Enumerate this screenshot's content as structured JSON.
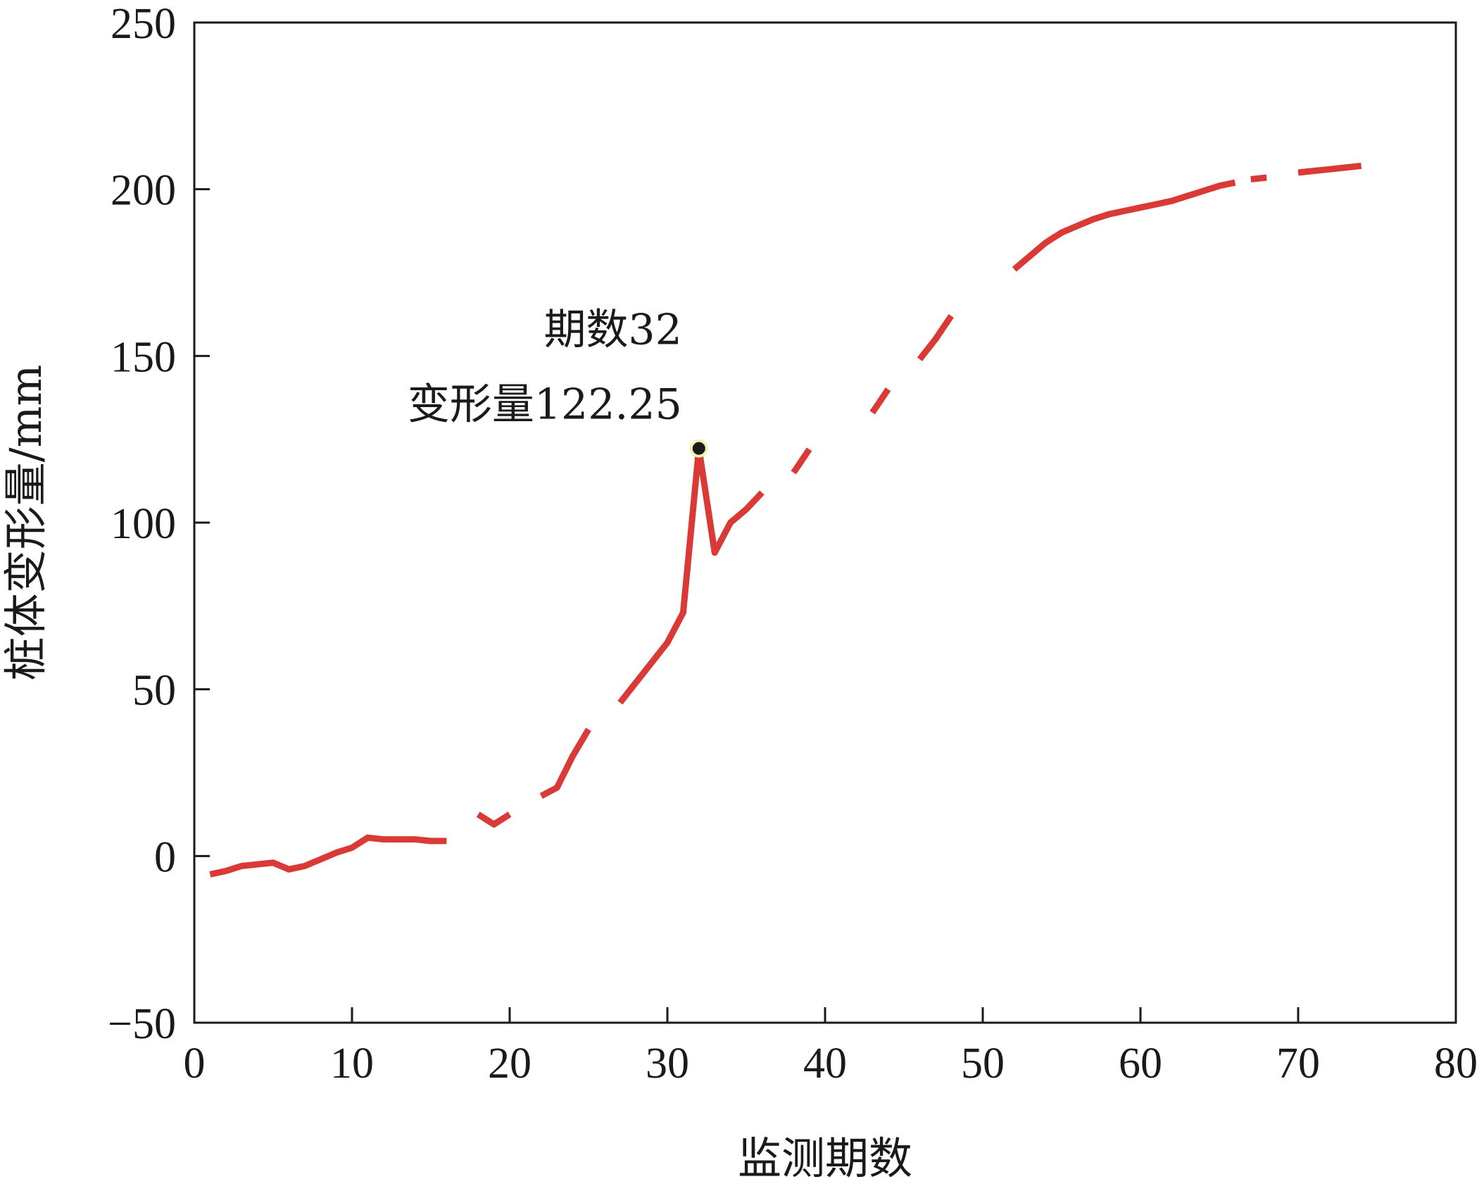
{
  "chart_data": {
    "type": "line",
    "xlabel": "监测期数",
    "ylabel": "桩体变形量/mm",
    "xlim": [
      0,
      80
    ],
    "ylim": [
      -50,
      250
    ],
    "xticks": [
      "0",
      "10",
      "20",
      "30",
      "40",
      "50",
      "60",
      "70",
      "80"
    ],
    "yticks": [
      "−50",
      "0",
      "50",
      "100",
      "150",
      "200",
      "250"
    ],
    "grid": false,
    "line_color": "#d93a36",
    "series": [
      {
        "segments": [
          [
            [
              1,
              -5.5
            ],
            [
              2,
              -4.5
            ],
            [
              3,
              -3
            ],
            [
              4,
              -2.5
            ],
            [
              5,
              -2
            ],
            [
              6,
              -4
            ],
            [
              7,
              -3
            ],
            [
              8,
              -1
            ],
            [
              9,
              1
            ],
            [
              10,
              2.5
            ],
            [
              11,
              5.5
            ],
            [
              12,
              5
            ],
            [
              13,
              5
            ],
            [
              14,
              5
            ],
            [
              15,
              4.5
            ],
            [
              16,
              4.5
            ]
          ],
          [
            [
              18,
              12.5
            ],
            [
              19,
              9.5
            ],
            [
              20,
              12.5
            ]
          ],
          [
            [
              22,
              18
            ],
            [
              23,
              20.5
            ],
            [
              24,
              30
            ],
            [
              25,
              38
            ]
          ],
          [
            [
              27,
              46
            ],
            [
              28,
              52
            ],
            [
              29,
              58
            ],
            [
              30,
              64
            ],
            [
              31,
              73
            ],
            [
              32,
              122.25
            ],
            [
              33,
              91
            ],
            [
              34,
              100
            ],
            [
              35,
              104
            ],
            [
              36,
              109
            ]
          ],
          [
            [
              38,
              115
            ],
            [
              39,
              122
            ]
          ],
          [
            [
              43,
              133
            ],
            [
              44,
              140
            ]
          ],
          [
            [
              46,
              149
            ],
            [
              47,
              155
            ],
            [
              48,
              162
            ]
          ],
          [
            [
              52,
              176
            ],
            [
              53,
              180
            ],
            [
              54,
              184
            ],
            [
              55,
              187
            ],
            [
              56,
              189
            ],
            [
              57,
              191
            ],
            [
              58,
              192.5
            ],
            [
              59,
              193.5
            ],
            [
              60,
              194.5
            ],
            [
              61,
              195.5
            ],
            [
              62,
              196.5
            ],
            [
              63,
              198
            ],
            [
              64,
              199.5
            ],
            [
              65,
              201
            ],
            [
              66,
              202
            ]
          ],
          [
            [
              67,
              203
            ],
            [
              68,
              203.5
            ]
          ],
          [
            [
              70,
              205
            ],
            [
              71,
              205.5
            ],
            [
              72,
              206
            ],
            [
              73,
              206.5
            ],
            [
              74,
              207
            ]
          ]
        ]
      }
    ],
    "highlight": {
      "x": 32,
      "y": 122.25
    },
    "annotation": {
      "line1": "期数32",
      "line2": "变形量122.25"
    }
  }
}
